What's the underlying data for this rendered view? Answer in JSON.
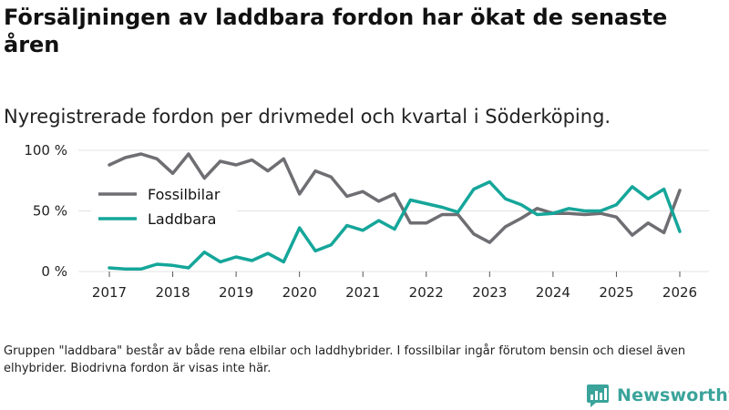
{
  "title": "Försäljningen av laddbara fordon har ökat de senaste åren",
  "subtitle": "Nyregistrerade fordon per drivmedel och kvartal i Söderköping.",
  "footnote": "Gruppen \"laddbara\" består av både rena elbilar och laddhybrider. I fossilbilar ingår förutom bensin och diesel även elhybrider. Biodrivna fordon är visas inte här.",
  "brand": {
    "name": "Newsworthy",
    "color": "#3aa39a"
  },
  "chart_data": {
    "type": "line",
    "title": "Försäljningen av laddbara fordon har ökat de senaste åren",
    "subtitle": "Nyregistrerade fordon per drivmedel och kvartal i Söderköping.",
    "xlabel": "",
    "ylabel": "",
    "xlim": [
      2017,
      2026
    ],
    "ylim": [
      0,
      100
    ],
    "grid": true,
    "legend_position": "left-middle",
    "x_ticks": [
      2017,
      2018,
      2019,
      2020,
      2021,
      2022,
      2023,
      2024,
      2025,
      2026
    ],
    "x_tick_labels": [
      "2017",
      "2018",
      "2019",
      "2020",
      "2021",
      "2022",
      "2023",
      "2024",
      "2025",
      "2026"
    ],
    "y_ticks": [
      0,
      50,
      100
    ],
    "y_tick_labels": [
      "0 %",
      "50 %",
      "100 %"
    ],
    "x": [
      2017.0,
      2017.25,
      2017.5,
      2017.75,
      2018.0,
      2018.25,
      2018.5,
      2018.75,
      2019.0,
      2019.25,
      2019.5,
      2019.75,
      2020.0,
      2020.25,
      2020.5,
      2020.75,
      2021.0,
      2021.25,
      2021.5,
      2021.75,
      2022.0,
      2022.25,
      2022.5,
      2022.75,
      2023.0,
      2023.25,
      2023.5,
      2023.75,
      2024.0,
      2024.25,
      2024.5,
      2024.75,
      2025.0,
      2025.25,
      2025.5,
      2025.75,
      2026.0
    ],
    "series": [
      {
        "name": "Fossilbilar",
        "color": "#6e6e73",
        "values": [
          88,
          94,
          97,
          93,
          81,
          97,
          77,
          91,
          88,
          92,
          83,
          93,
          64,
          83,
          78,
          62,
          66,
          58,
          64,
          40,
          40,
          47,
          47,
          31,
          24,
          37,
          44,
          52,
          48,
          48,
          47,
          48,
          45,
          30,
          40,
          32,
          67
        ]
      },
      {
        "name": "Laddbara",
        "color": "#15a69a",
        "values": [
          3,
          2,
          2,
          6,
          5,
          3,
          16,
          8,
          12,
          9,
          15,
          8,
          36,
          17,
          22,
          38,
          34,
          42,
          35,
          59,
          56,
          53,
          49,
          68,
          74,
          60,
          55,
          47,
          48,
          52,
          50,
          50,
          55,
          70,
          60,
          68,
          33
        ]
      }
    ]
  }
}
